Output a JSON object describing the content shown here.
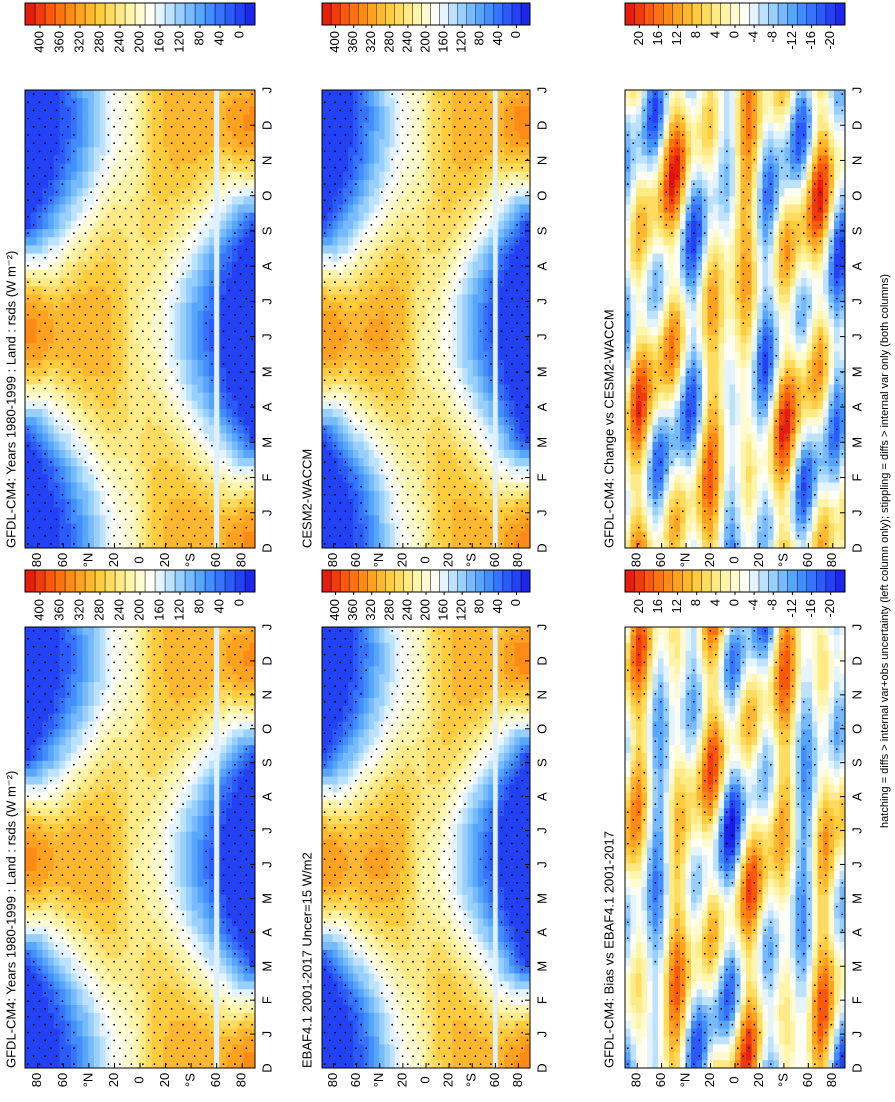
{
  "figure": {
    "type": "contour",
    "caption": "hatching = diffs > internal var+obs uncertainty (left column only); stippling = diffs > internal var only (both columns)",
    "months": [
      "D",
      "J",
      "F",
      "M",
      "A",
      "M",
      "J",
      "J",
      "A",
      "S",
      "O",
      "N",
      "D",
      "J"
    ],
    "lat_lim": [
      -90,
      90
    ],
    "lat_ticks": [
      {
        "value": 80,
        "label": "80"
      },
      {
        "value": 60,
        "label": "60"
      },
      {
        "value": 40,
        "label": "°N"
      },
      20,
      0,
      {
        "value": -20,
        "label": "20"
      },
      {
        "value": -40,
        "label": "°S"
      },
      {
        "value": -60,
        "label": "60"
      },
      {
        "value": -80,
        "label": "80"
      }
    ],
    "colormap": [
      "#1a1ae6",
      "#2a5cff",
      "#4a9cff",
      "#9cd4ff",
      "#ffffff",
      "#fff4a0",
      "#ffd040",
      "#ff9a1a",
      "#ff5a0a",
      "#e01010"
    ],
    "panels": [
      {
        "title": "GFDL-CM4: Years 1980-1999 : Land : rsds (W m⁻²)",
        "colorbar": {
          "lim": [
            -30,
            430
          ],
          "ticks": [
            400,
            360,
            320,
            280,
            240,
            200,
            160,
            120,
            80,
            40,
            0
          ]
        }
      },
      {
        "title": "EBAF4.1 2001-2017 Uncer=15 W/m2",
        "colorbar": {
          "lim": [
            -30,
            430
          ],
          "ticks": [
            400,
            360,
            320,
            280,
            240,
            200,
            160,
            120,
            80,
            40,
            0
          ]
        }
      },
      {
        "title": "GFDL-CM4: Bias vs EBAF4.1 2001-2017",
        "colorbar": {
          "lim": [
            -23,
            23
          ],
          "ticks": [
            20,
            16,
            12,
            8,
            4,
            0,
            -4,
            -8,
            -12,
            -16,
            -20
          ]
        }
      },
      {
        "title": "GFDL-CM4: Years 1980-1999 : Land : rsds (W m⁻²)",
        "colorbar": {
          "lim": [
            -30,
            430
          ],
          "ticks": [
            400,
            360,
            320,
            280,
            240,
            200,
            160,
            120,
            80,
            40,
            0
          ]
        }
      },
      {
        "title": "CESM2-WACCM",
        "colorbar": {
          "lim": [
            -30,
            430
          ],
          "ticks": [
            400,
            360,
            320,
            280,
            240,
            200,
            160,
            120,
            80,
            40,
            0
          ]
        }
      },
      {
        "title": "GFDL-CM4: Change vs CESM2-WACCM",
        "colorbar": {
          "lim": [
            -23,
            23
          ],
          "ticks": [
            20,
            16,
            12,
            8,
            4,
            0,
            -4,
            -8,
            -12,
            -16,
            -20
          ]
        }
      }
    ]
  }
}
